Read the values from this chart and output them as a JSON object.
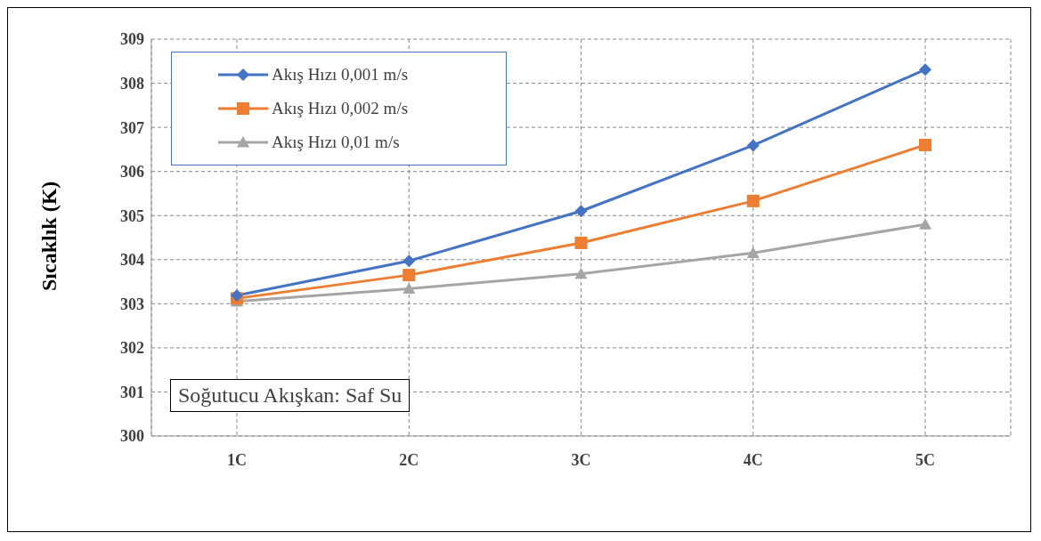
{
  "chart_data": {
    "type": "line",
    "ylabel": "Sıcaklık (K)",
    "categories": [
      "1C",
      "2C",
      "3C",
      "4C",
      "5C"
    ],
    "series": [
      {
        "name": "Akış Hızı 0,001 m/s",
        "color": "#4472c4",
        "marker": "diamond",
        "values": [
          303.19,
          303.97,
          305.1,
          306.59,
          308.31
        ]
      },
      {
        "name": "Akış Hızı 0,002 m/s",
        "color": "#ed7d31",
        "marker": "square",
        "values": [
          303.12,
          303.65,
          304.38,
          305.33,
          306.6
        ]
      },
      {
        "name": "Akış Hızı 0,01 m/s",
        "color": "#a5a5a5",
        "marker": "triangle",
        "values": [
          303.05,
          303.34,
          303.68,
          304.15,
          304.8
        ]
      }
    ],
    "ylim": [
      300,
      309
    ],
    "yticks": [
      300,
      301,
      302,
      303,
      304,
      305,
      306,
      307,
      308,
      309
    ],
    "grid": true,
    "legend": "top left",
    "line_style": "solid",
    "annotations": [
      "Soğutucu Akışkan: Saf Su"
    ]
  }
}
